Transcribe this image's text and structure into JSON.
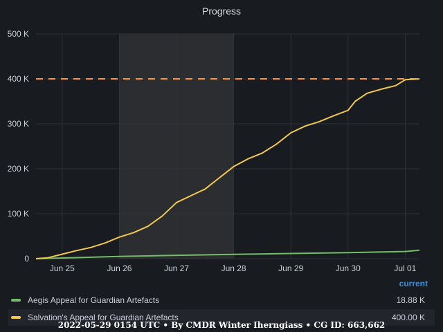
{
  "panel": {
    "title": "Progress"
  },
  "chart_data": {
    "type": "line",
    "title": "Progress",
    "ylim": [
      0,
      500000
    ],
    "y_ticks": [
      {
        "value": 0,
        "label": "0"
      },
      {
        "value": 100000,
        "label": "100 K"
      },
      {
        "value": 200000,
        "label": "200 K"
      },
      {
        "value": 300000,
        "label": "300 K"
      },
      {
        "value": 400000,
        "label": "400 K"
      },
      {
        "value": 500000,
        "label": "500 K"
      }
    ],
    "xlim": [
      "2022-06-24T13:00",
      "2022-07-01T06:00"
    ],
    "x_ticks": [
      {
        "value": "2022-06-25T00:00",
        "label": "Jun 25"
      },
      {
        "value": "2022-06-26T00:00",
        "label": "Jun 26"
      },
      {
        "value": "2022-06-27T00:00",
        "label": "Jun 27"
      },
      {
        "value": "2022-06-28T00:00",
        "label": "Jun 28"
      },
      {
        "value": "2022-06-29T00:00",
        "label": "Jun 29"
      },
      {
        "value": "2022-06-30T00:00",
        "label": "Jun 30"
      },
      {
        "value": "2022-07-01T00:00",
        "label": "Jul 01"
      }
    ],
    "shaded_region": {
      "from": "2022-06-26T00:00",
      "to": "2022-06-28T00:00",
      "color": "#2b2d31"
    },
    "threshold": {
      "value": 400000,
      "color": "#ff9830",
      "style": "dashed"
    },
    "grid": true,
    "legend_placement": "bottom",
    "series": [
      {
        "name": "Aegis Appeal for Guardian Artefacts",
        "color": "#73bf69",
        "points": [
          [
            "2022-06-24T13:00",
            0
          ],
          [
            "2022-06-25T00:00",
            1500
          ],
          [
            "2022-06-26T00:00",
            5000
          ],
          [
            "2022-06-27T00:00",
            7500
          ],
          [
            "2022-06-28T00:00",
            9500
          ],
          [
            "2022-06-29T00:00",
            11500
          ],
          [
            "2022-06-30T00:00",
            13500
          ],
          [
            "2022-07-01T00:00",
            16000
          ],
          [
            "2022-07-01T06:00",
            18880
          ]
        ]
      },
      {
        "name": "Salvation's Appeal for Guardian Artefacts",
        "color": "#f2c94c",
        "points": [
          [
            "2022-06-24T13:00",
            0
          ],
          [
            "2022-06-24T18:00",
            2000
          ],
          [
            "2022-06-25T00:00",
            10000
          ],
          [
            "2022-06-25T06:00",
            18000
          ],
          [
            "2022-06-25T12:00",
            25000
          ],
          [
            "2022-06-25T18:00",
            35000
          ],
          [
            "2022-06-26T00:00",
            48000
          ],
          [
            "2022-06-26T06:00",
            58000
          ],
          [
            "2022-06-26T12:00",
            72000
          ],
          [
            "2022-06-26T18:00",
            95000
          ],
          [
            "2022-06-27T00:00",
            125000
          ],
          [
            "2022-06-27T06:00",
            140000
          ],
          [
            "2022-06-27T12:00",
            155000
          ],
          [
            "2022-06-27T18:00",
            180000
          ],
          [
            "2022-06-28T00:00",
            205000
          ],
          [
            "2022-06-28T06:00",
            222000
          ],
          [
            "2022-06-28T12:00",
            235000
          ],
          [
            "2022-06-28T18:00",
            255000
          ],
          [
            "2022-06-29T00:00",
            280000
          ],
          [
            "2022-06-29T06:00",
            295000
          ],
          [
            "2022-06-29T12:00",
            305000
          ],
          [
            "2022-06-29T18:00",
            318000
          ],
          [
            "2022-06-30T00:00",
            330000
          ],
          [
            "2022-06-30T03:00",
            350000
          ],
          [
            "2022-06-30T08:00",
            368000
          ],
          [
            "2022-06-30T14:00",
            377000
          ],
          [
            "2022-06-30T20:00",
            385000
          ],
          [
            "2022-07-01T00:00",
            398000
          ],
          [
            "2022-07-01T06:00",
            400000
          ]
        ]
      }
    ]
  },
  "legend": {
    "header": "current",
    "items": [
      {
        "name": "Aegis Appeal for Guardian Artefacts",
        "value": "18.88 K",
        "color": "#73bf69"
      },
      {
        "name": "Salvation's Appeal for Guardian Artefacts",
        "value": "400.00 K",
        "color": "#f2c94c"
      }
    ]
  },
  "footer": {
    "text": "2022-05-29 0154 UTC • By CMDR Winter Iherngiass • CG ID: 663,662"
  }
}
